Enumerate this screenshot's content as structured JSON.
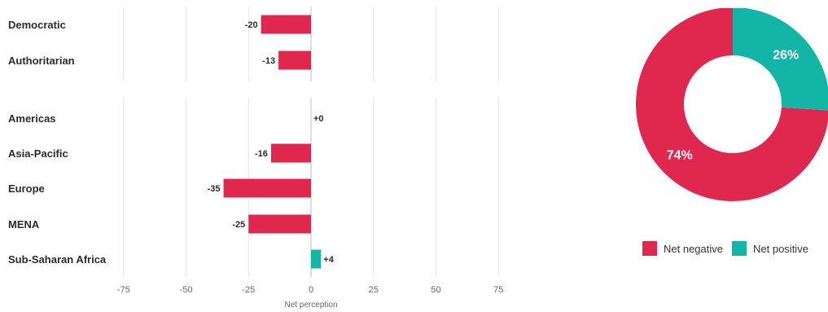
{
  "colors": {
    "negative": "#e0284f",
    "positive": "#12b5a6",
    "grid": "#e6e6e6",
    "zero_line": "#bdbdbd"
  },
  "chart_data": [
    {
      "type": "bar",
      "orientation": "horizontal",
      "groups": [
        {
          "categories": [
            "Democratic",
            "Authoritarian"
          ],
          "values": [
            -20,
            -13
          ],
          "value_labels": [
            "-20",
            "-13"
          ]
        },
        {
          "categories": [
            "Americas",
            "Asia-Pacific",
            "Europe",
            "MENA",
            "Sub-Saharan Africa"
          ],
          "values": [
            0,
            -16,
            -35,
            -25,
            4
          ],
          "value_labels": [
            "+0",
            "-16",
            "-35",
            "-25",
            "+4"
          ]
        }
      ],
      "xlabel": "Net perception",
      "xlim": [
        -75,
        75
      ],
      "xticks": [
        -75,
        -50,
        -25,
        0,
        25,
        50,
        75
      ],
      "xtick_labels": [
        "-75",
        "-50",
        "-25",
        "0",
        "25",
        "50",
        "75"
      ],
      "grid": true
    },
    {
      "type": "pie",
      "style": "donut",
      "labels": [
        "Net negative",
        "Net positive"
      ],
      "values": [
        74,
        26
      ],
      "slice_labels": [
        "74%",
        "26%"
      ],
      "legend": "bottom"
    }
  ]
}
